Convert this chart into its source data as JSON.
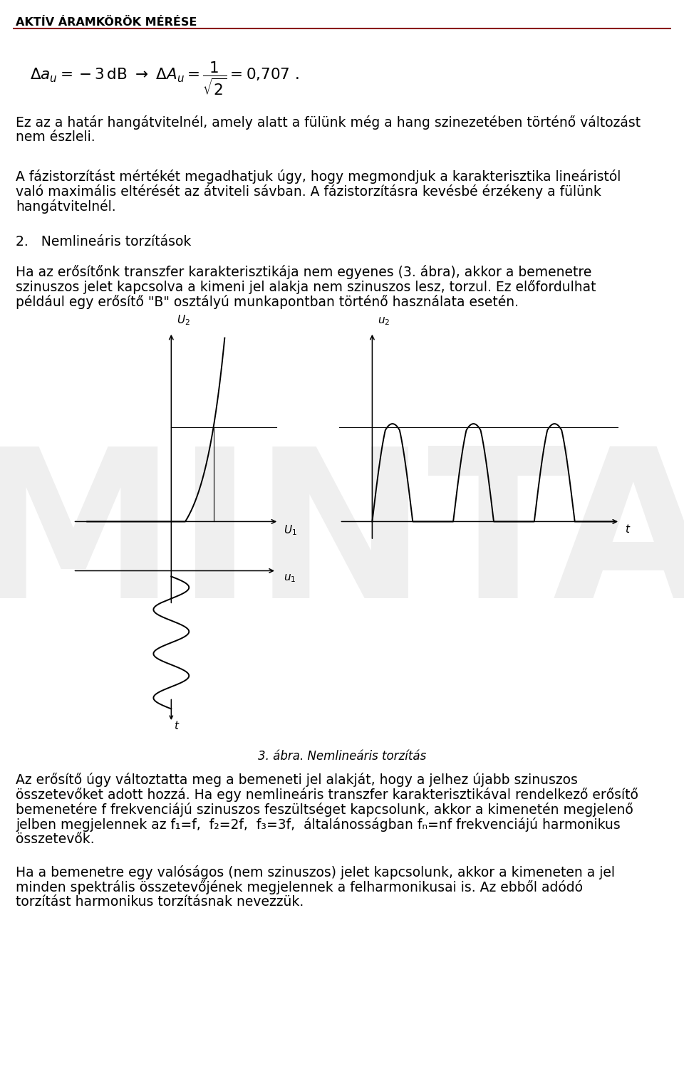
{
  "title": "AKTÍV ÁRAMKÖRÖK MÉRÉSE",
  "bg_color": "#ffffff",
  "text_color": "#000000",
  "header_bar_color": "#8B1A1A",
  "watermark_text": "MINTA",
  "watermark_color": "#cccccc",
  "watermark_alpha": 0.3,
  "fig_caption": "3. ábra. Nemlineáris torzítás"
}
